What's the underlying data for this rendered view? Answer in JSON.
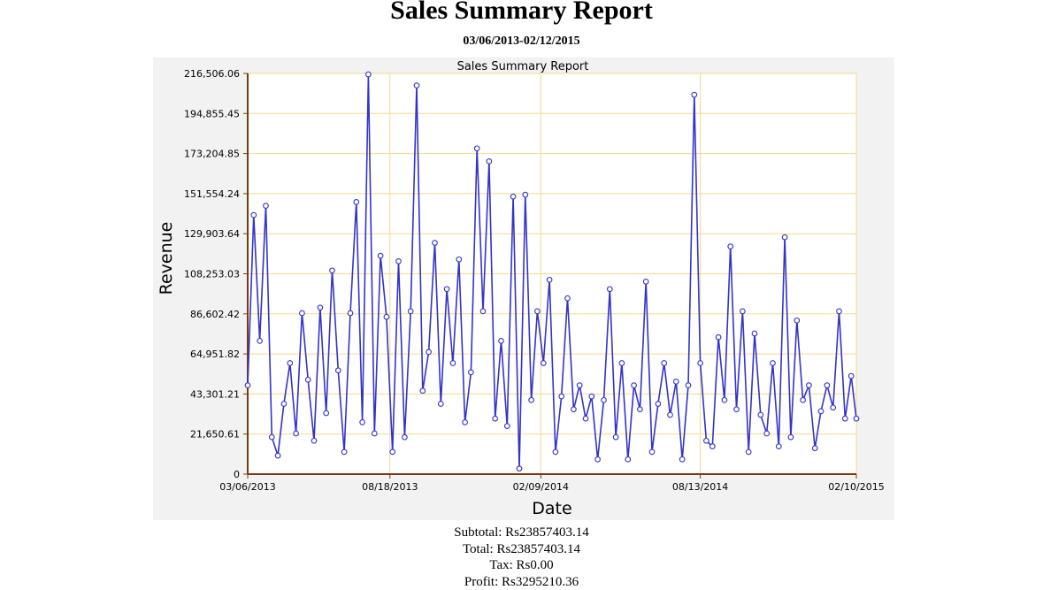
{
  "report": {
    "title": "Sales Summary Report",
    "date_range": "03/06/2013-02/12/2015"
  },
  "summary": {
    "subtotal": "Subtotal: Rs23857403.14",
    "total": "Total: Rs23857403.14",
    "tax": "Tax: Rs0.00",
    "profit": "Profit: Rs3295210.36"
  },
  "chart_data": {
    "type": "line",
    "title": "Sales Summary Report",
    "xlabel": "Date",
    "ylabel": "Revenue",
    "ylim": [
      0,
      216506.06
    ],
    "y_ticks": [
      "0",
      "21,650.61",
      "43,301.21",
      "64,951.82",
      "86,602.42",
      "108,253.03",
      "129,903.64",
      "151,554.24",
      "173,204.85",
      "194,855.45",
      "216,506.06"
    ],
    "x_ticks": [
      "03/06/2013",
      "08/18/2013",
      "02/09/2014",
      "08/13/2014",
      "02/10/2015"
    ],
    "x_range": [
      "03/06/2013",
      "02/10/2015"
    ],
    "grid": true,
    "line_color": "#3333cc",
    "marker": "hollow-circle",
    "series": [
      {
        "x": [
          "03/06/2013",
          "03/13/2013",
          "03/20/2013",
          "03/27/2013",
          "04/03/2013",
          "04/10/2013",
          "04/17/2013",
          "04/24/2013",
          "05/01/2013",
          "05/08/2013",
          "05/15/2013",
          "05/22/2013",
          "05/29/2013",
          "06/05/2013",
          "06/12/2013",
          "06/19/2013",
          "06/26/2013",
          "07/03/2013",
          "07/10/2013",
          "07/17/2013",
          "07/24/2013",
          "07/31/2013",
          "08/07/2013",
          "08/14/2013",
          "08/21/2013",
          "08/28/2013",
          "09/04/2013",
          "09/11/2013",
          "09/18/2013",
          "09/25/2013",
          "10/02/2013",
          "10/09/2013",
          "10/16/2013",
          "10/23/2013",
          "10/30/2013",
          "11/06/2013",
          "11/13/2013",
          "11/20/2013",
          "11/27/2013",
          "12/04/2013",
          "12/11/2013",
          "12/18/2013",
          "12/25/2013",
          "01/01/2014",
          "01/08/2014",
          "01/15/2014",
          "01/22/2014",
          "01/29/2014",
          "02/05/2014",
          "02/12/2014",
          "02/19/2014",
          "02/26/2014",
          "03/05/2014",
          "03/12/2014",
          "03/19/2014",
          "03/26/2014",
          "04/02/2014",
          "04/09/2014",
          "04/16/2014",
          "04/23/2014",
          "04/30/2014",
          "05/07/2014",
          "05/14/2014",
          "05/21/2014",
          "05/28/2014",
          "06/04/2014",
          "06/11/2014",
          "06/18/2014",
          "06/25/2014",
          "07/02/2014",
          "07/09/2014",
          "07/16/2014",
          "07/23/2014",
          "07/30/2014",
          "08/06/2014",
          "08/13/2014",
          "08/20/2014",
          "08/27/2014",
          "09/03/2014",
          "09/10/2014",
          "09/17/2014",
          "09/24/2014",
          "10/01/2014",
          "10/08/2014",
          "10/15/2014",
          "10/22/2014",
          "10/29/2014",
          "11/05/2014",
          "11/12/2014",
          "11/19/2014",
          "11/26/2014",
          "12/03/2014",
          "12/10/2014",
          "12/17/2014",
          "12/24/2014",
          "12/31/2014",
          "01/07/2015",
          "01/14/2015",
          "01/21/2015",
          "01/28/2015",
          "02/04/2015",
          "02/10/2015"
        ],
        "values": [
          48000,
          140000,
          72000,
          145000,
          20000,
          10000,
          38000,
          60000,
          22000,
          87000,
          51000,
          18000,
          90000,
          33000,
          110000,
          56000,
          12000,
          87000,
          147000,
          28000,
          216000,
          22000,
          118000,
          85000,
          12000,
          115000,
          20000,
          88000,
          210000,
          45000,
          66000,
          125000,
          38000,
          100000,
          60000,
          116000,
          28000,
          55000,
          176000,
          88000,
          169000,
          30000,
          72000,
          26000,
          150000,
          3000,
          151000,
          40000,
          88000,
          60000,
          105000,
          12000,
          42000,
          95000,
          35000,
          48000,
          30000,
          42000,
          8000,
          40000,
          100000,
          20000,
          60000,
          8000,
          48000,
          35000,
          104000,
          12000,
          38000,
          60000,
          32000,
          50000,
          8000,
          48000,
          205000,
          60000,
          18000,
          15000,
          74000,
          40000,
          123000,
          35000,
          88000,
          12000,
          76000,
          32000,
          22000,
          60000,
          15000,
          128000,
          20000,
          83000,
          40000,
          48000,
          14000,
          34000,
          48000,
          36000,
          88000,
          30000,
          53000,
          30000
        ]
      }
    ]
  }
}
